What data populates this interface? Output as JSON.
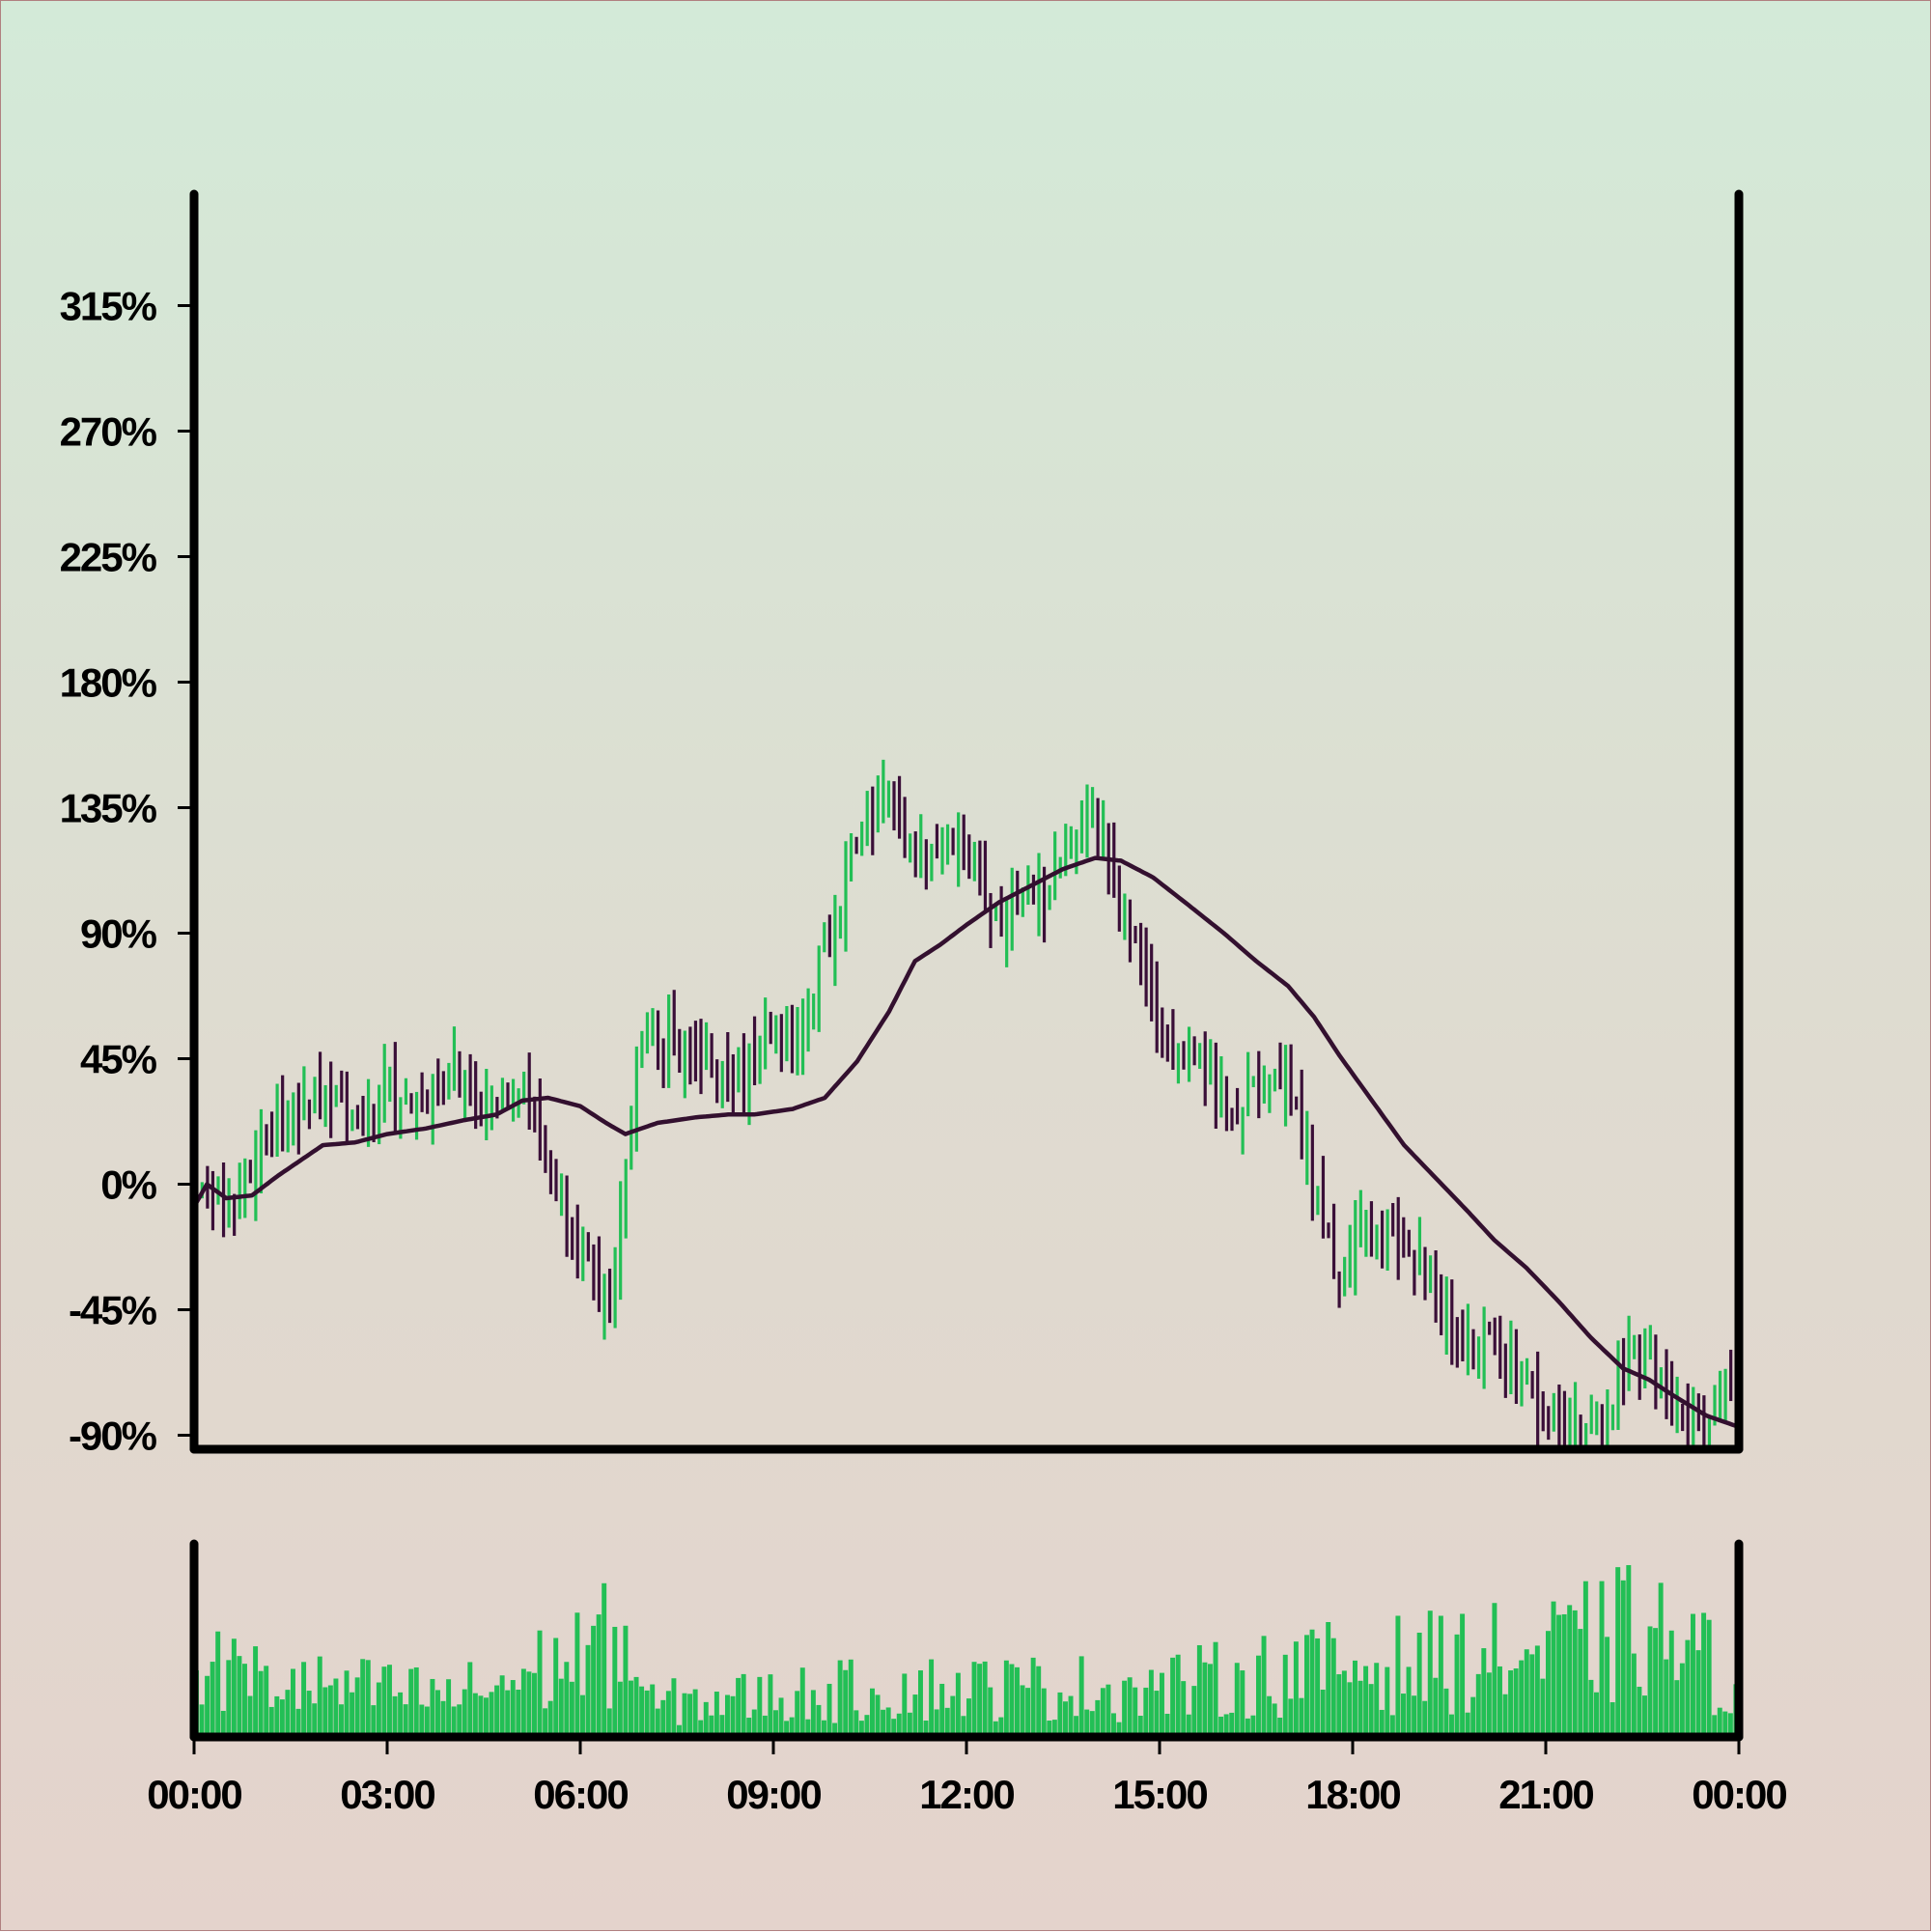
{
  "chart_data": {
    "type": "ohlc",
    "title": "",
    "xlabel": "",
    "ylabel": "",
    "y_axis": {
      "ticks": [
        -90,
        -45,
        0,
        45,
        90,
        135,
        180,
        225,
        270,
        315
      ],
      "tick_labels": [
        "-90%",
        "-45%",
        "0%",
        "45%",
        "90%",
        "135%",
        "180%",
        "225%",
        "270%",
        "315%"
      ],
      "ylim": [
        -95,
        355
      ]
    },
    "x_axis": {
      "ticks": [
        0,
        3,
        6,
        9,
        12,
        15,
        18,
        21,
        24
      ],
      "tick_labels": [
        "00:00",
        "03:00",
        "06:00",
        "09:00",
        "12:00",
        "15:00",
        "18:00",
        "21:00",
        "00:00"
      ],
      "xlim_hours": [
        0,
        24
      ]
    },
    "bar_interval_minutes": 5,
    "colors": {
      "up": "#22bf55",
      "down": "#3a0f38",
      "moving_average": "#33102f",
      "volume": "#22bf55",
      "axis": "#000000"
    },
    "price_anchors": [
      {
        "t": 0.0,
        "v": -5
      },
      {
        "t": 0.5,
        "v": -8
      },
      {
        "t": 1.0,
        "v": 12
      },
      {
        "t": 1.6,
        "v": 28
      },
      {
        "t": 2.2,
        "v": 36
      },
      {
        "t": 2.6,
        "v": 20
      },
      {
        "t": 3.0,
        "v": 35
      },
      {
        "t": 3.6,
        "v": 30
      },
      {
        "t": 4.0,
        "v": 42
      },
      {
        "t": 4.5,
        "v": 30
      },
      {
        "t": 5.0,
        "v": 40
      },
      {
        "t": 5.3,
        "v": 25
      },
      {
        "t": 5.6,
        "v": 0
      },
      {
        "t": 6.0,
        "v": -20
      },
      {
        "t": 6.3,
        "v": -45
      },
      {
        "t": 6.6,
        "v": -25
      },
      {
        "t": 6.75,
        "v": 20
      },
      {
        "t": 7.0,
        "v": 55
      },
      {
        "t": 7.5,
        "v": 50
      },
      {
        "t": 8.0,
        "v": 42
      },
      {
        "t": 8.5,
        "v": 38
      },
      {
        "t": 9.0,
        "v": 55
      },
      {
        "t": 9.3,
        "v": 48
      },
      {
        "t": 9.6,
        "v": 70
      },
      {
        "t": 10.0,
        "v": 100
      },
      {
        "t": 10.3,
        "v": 128
      },
      {
        "t": 10.8,
        "v": 138
      },
      {
        "t": 11.2,
        "v": 115
      },
      {
        "t": 11.6,
        "v": 128
      },
      {
        "t": 12.0,
        "v": 115
      },
      {
        "t": 12.5,
        "v": 95
      },
      {
        "t": 13.0,
        "v": 100
      },
      {
        "t": 13.5,
        "v": 115
      },
      {
        "t": 14.0,
        "v": 130
      },
      {
        "t": 14.4,
        "v": 100
      },
      {
        "t": 14.8,
        "v": 70
      },
      {
        "t": 15.2,
        "v": 48
      },
      {
        "t": 15.8,
        "v": 38
      },
      {
        "t": 16.2,
        "v": 22
      },
      {
        "t": 16.5,
        "v": 35
      },
      {
        "t": 16.9,
        "v": 40
      },
      {
        "t": 17.2,
        "v": 20
      },
      {
        "t": 17.6,
        "v": -20
      },
      {
        "t": 17.9,
        "v": -38
      },
      {
        "t": 18.2,
        "v": -10
      },
      {
        "t": 18.6,
        "v": -25
      },
      {
        "t": 19.0,
        "v": -20
      },
      {
        "t": 19.4,
        "v": -45
      },
      {
        "t": 19.8,
        "v": -60
      },
      {
        "t": 20.2,
        "v": -55
      },
      {
        "t": 20.6,
        "v": -70
      },
      {
        "t": 21.0,
        "v": -80
      },
      {
        "t": 21.5,
        "v": -85
      },
      {
        "t": 22.0,
        "v": -75
      },
      {
        "t": 22.4,
        "v": -55
      },
      {
        "t": 22.8,
        "v": -72
      },
      {
        "t": 23.2,
        "v": -88
      },
      {
        "t": 23.6,
        "v": -80
      },
      {
        "t": 24.0,
        "v": -65
      }
    ],
    "moving_average": [
      {
        "t": 0.0,
        "v": -8
      },
      {
        "t": 0.2,
        "v": 0
      },
      {
        "t": 0.5,
        "v": -5
      },
      {
        "t": 0.9,
        "v": -4
      },
      {
        "t": 1.3,
        "v": 3
      },
      {
        "t": 2.0,
        "v": 14
      },
      {
        "t": 2.5,
        "v": 15
      },
      {
        "t": 3.0,
        "v": 18
      },
      {
        "t": 3.6,
        "v": 20
      },
      {
        "t": 4.2,
        "v": 23
      },
      {
        "t": 4.7,
        "v": 25
      },
      {
        "t": 5.1,
        "v": 30
      },
      {
        "t": 5.5,
        "v": 31
      },
      {
        "t": 6.0,
        "v": 28
      },
      {
        "t": 6.4,
        "v": 22
      },
      {
        "t": 6.7,
        "v": 18
      },
      {
        "t": 7.2,
        "v": 22
      },
      {
        "t": 7.8,
        "v": 24
      },
      {
        "t": 8.3,
        "v": 25
      },
      {
        "t": 8.7,
        "v": 25
      },
      {
        "t": 9.3,
        "v": 27
      },
      {
        "t": 9.8,
        "v": 31
      },
      {
        "t": 10.3,
        "v": 44
      },
      {
        "t": 10.8,
        "v": 62
      },
      {
        "t": 11.2,
        "v": 80
      },
      {
        "t": 11.6,
        "v": 86
      },
      {
        "t": 12.0,
        "v": 93
      },
      {
        "t": 12.5,
        "v": 101
      },
      {
        "t": 13.0,
        "v": 107
      },
      {
        "t": 13.5,
        "v": 113
      },
      {
        "t": 14.0,
        "v": 117
      },
      {
        "t": 14.4,
        "v": 116
      },
      {
        "t": 14.9,
        "v": 110
      },
      {
        "t": 15.4,
        "v": 101
      },
      {
        "t": 16.0,
        "v": 90
      },
      {
        "t": 16.5,
        "v": 80
      },
      {
        "t": 17.0,
        "v": 71
      },
      {
        "t": 17.4,
        "v": 60
      },
      {
        "t": 17.8,
        "v": 46
      },
      {
        "t": 18.3,
        "v": 30
      },
      {
        "t": 18.8,
        "v": 14
      },
      {
        "t": 19.3,
        "v": 2
      },
      {
        "t": 19.8,
        "v": -10
      },
      {
        "t": 20.2,
        "v": -20
      },
      {
        "t": 20.7,
        "v": -30
      },
      {
        "t": 21.2,
        "v": -42
      },
      {
        "t": 21.7,
        "v": -55
      },
      {
        "t": 22.2,
        "v": -66
      },
      {
        "t": 22.6,
        "v": -70
      },
      {
        "t": 23.0,
        "v": -76
      },
      {
        "t": 23.5,
        "v": -83
      },
      {
        "t": 24.0,
        "v": -87
      }
    ],
    "volume_envelope": [
      {
        "t": 0.0,
        "v": 0.45
      },
      {
        "t": 1.0,
        "v": 0.35
      },
      {
        "t": 2.0,
        "v": 0.3
      },
      {
        "t": 3.0,
        "v": 0.28
      },
      {
        "t": 4.0,
        "v": 0.25
      },
      {
        "t": 5.0,
        "v": 0.35
      },
      {
        "t": 6.0,
        "v": 0.5
      },
      {
        "t": 6.7,
        "v": 0.6
      },
      {
        "t": 7.0,
        "v": 0.2
      },
      {
        "t": 9.0,
        "v": 0.25
      },
      {
        "t": 11.0,
        "v": 0.3
      },
      {
        "t": 13.0,
        "v": 0.3
      },
      {
        "t": 15.0,
        "v": 0.3
      },
      {
        "t": 17.0,
        "v": 0.4
      },
      {
        "t": 19.0,
        "v": 0.45
      },
      {
        "t": 21.0,
        "v": 0.5
      },
      {
        "t": 22.5,
        "v": 0.65
      },
      {
        "t": 24.0,
        "v": 0.35
      }
    ]
  }
}
